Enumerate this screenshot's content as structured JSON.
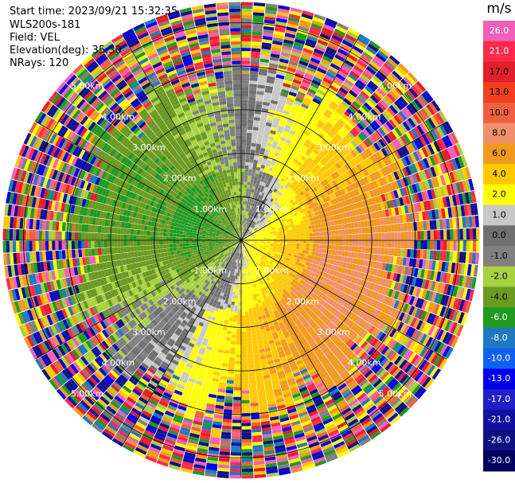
{
  "info": {
    "start_time": "Start time: 2023/09/21 15:32:35",
    "instrument": "WLS200s-181",
    "field": "Field: VEL",
    "elevation": "Elevation(deg): 35.30",
    "nrays": "NRays: 120"
  },
  "chart_data": {
    "type": "heatmap",
    "projection": "polar-ppi",
    "field": "VEL",
    "unit": "m/s",
    "range_rings_km": [
      1,
      2,
      3,
      4,
      5
    ],
    "ring_labels": [
      "1.00km",
      "2.00km",
      "3.00km",
      "4.00km",
      "5.00km"
    ],
    "max_range_km": 5.45,
    "n_rays": 120,
    "azimuth_spokes_deg": [
      0,
      30,
      60,
      90,
      120,
      150,
      180,
      210,
      240,
      270,
      300,
      330
    ],
    "colorbar": {
      "title": "m/s",
      "ticks": [
        "26.0",
        "21.0",
        "17.0",
        "13.0",
        "10.0",
        "8.0",
        "6.0",
        "4.0",
        "2.0",
        "1.0",
        "0.0",
        "-1.0",
        "-2.0",
        "-4.0",
        "-6.0",
        "-8.0",
        "-10.0",
        "-13.0",
        "-17.0",
        "-21.0",
        "-26.0",
        "-30.0"
      ],
      "levels": [
        30,
        26,
        21,
        17,
        13,
        10,
        8,
        6,
        4,
        2,
        1,
        0,
        -1,
        -2,
        -4,
        -6,
        -8,
        -10,
        -13,
        -17,
        -21,
        -26,
        -30
      ],
      "colors": [
        "#f060b8",
        "#ff2a4a",
        "#e0202a",
        "#f04020",
        "#f06040",
        "#f0906a",
        "#f09a20",
        "#ffc800",
        "#ffff00",
        "#c8c8c8",
        "#707070",
        "#808080",
        "#a8d040",
        "#6a9a20",
        "#209a20",
        "#2078c0",
        "#1060f0",
        "#0000e8",
        "#2020c8",
        "#1010a0",
        "#101080",
        "#000060"
      ]
    },
    "grid": true
  }
}
